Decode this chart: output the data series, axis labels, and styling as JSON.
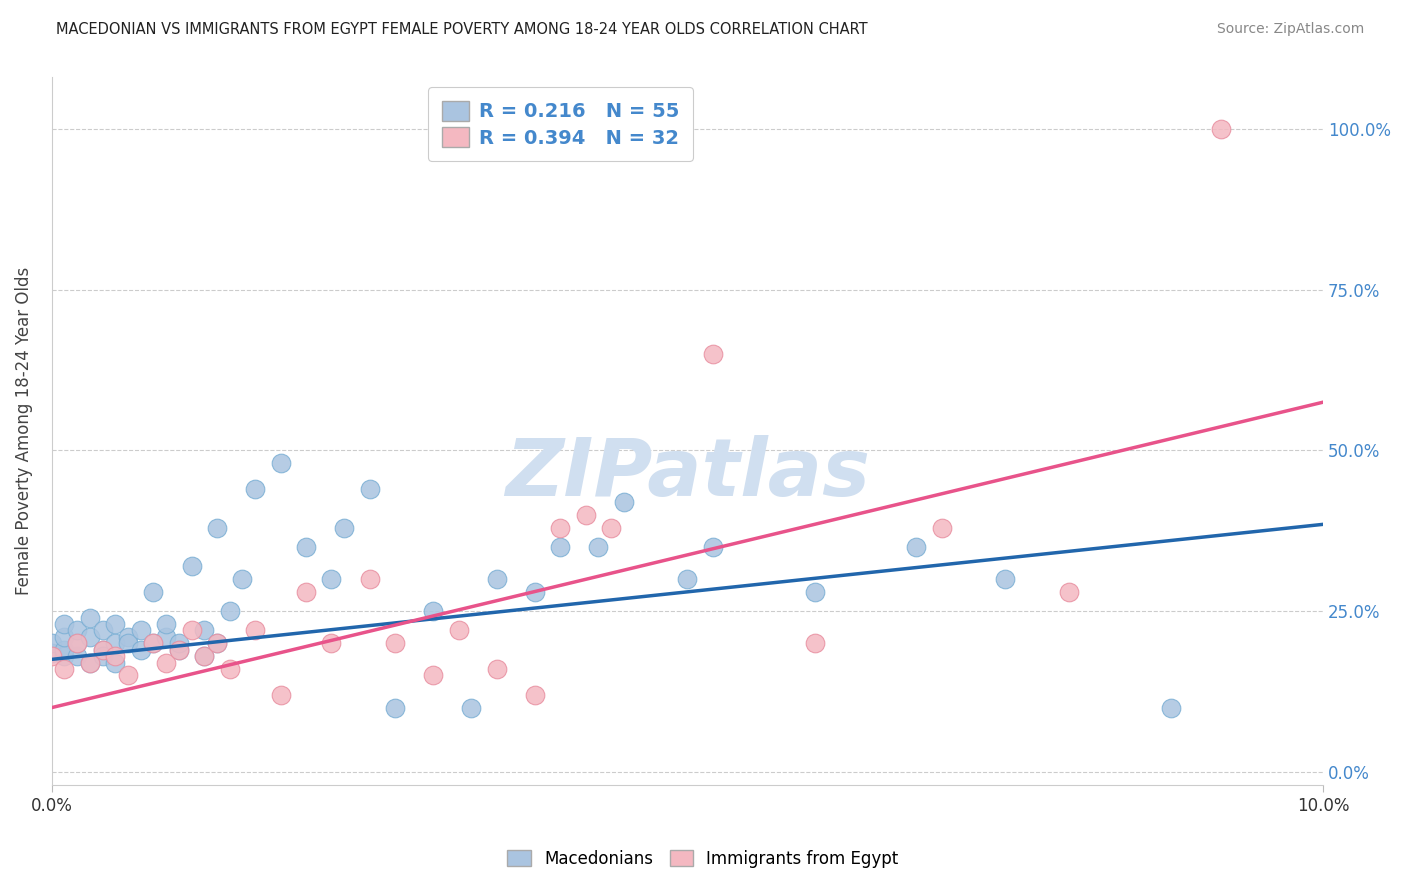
{
  "title": "MACEDONIAN VS IMMIGRANTS FROM EGYPT FEMALE POVERTY AMONG 18-24 YEAR OLDS CORRELATION CHART",
  "source": "Source: ZipAtlas.com",
  "ylabel": "Female Poverty Among 18-24 Year Olds",
  "xlim": [
    0.0,
    0.1
  ],
  "ylim": [
    -0.02,
    1.08
  ],
  "yticks": [
    0.0,
    0.25,
    0.5,
    0.75,
    1.0
  ],
  "ytick_labels": [
    "0.0%",
    "25.0%",
    "50.0%",
    "75.0%",
    "100.0%"
  ],
  "xtick_positions": [
    0.0,
    0.1
  ],
  "xtick_labels": [
    "0.0%",
    "10.0%"
  ],
  "mac_color": "#aac4e0",
  "egypt_color": "#f4b8c1",
  "mac_edge_color": "#7bafd4",
  "egypt_edge_color": "#e88fa0",
  "mac_line_color": "#2166ac",
  "egypt_line_color": "#e8538a",
  "R_mac": 0.216,
  "N_mac": 55,
  "R_egypt": 0.394,
  "N_egypt": 32,
  "watermark": "ZIPatlas",
  "watermark_color": "#d0dff0",
  "legend_label_mac": "Macedonians",
  "legend_label_egypt": "Immigrants from Egypt",
  "mac_line_y0": 0.175,
  "mac_line_y1": 0.385,
  "egypt_line_y0": 0.1,
  "egypt_line_y1": 0.575,
  "mac_scatter_x": [
    0.0,
    0.0,
    0.001,
    0.001,
    0.001,
    0.001,
    0.002,
    0.002,
    0.002,
    0.003,
    0.003,
    0.003,
    0.004,
    0.004,
    0.004,
    0.005,
    0.005,
    0.005,
    0.006,
    0.006,
    0.007,
    0.007,
    0.008,
    0.008,
    0.009,
    0.009,
    0.01,
    0.01,
    0.011,
    0.012,
    0.012,
    0.013,
    0.013,
    0.014,
    0.015,
    0.016,
    0.018,
    0.02,
    0.022,
    0.023,
    0.025,
    0.027,
    0.03,
    0.033,
    0.035,
    0.038,
    0.04,
    0.043,
    0.045,
    0.05,
    0.052,
    0.06,
    0.068,
    0.075,
    0.088
  ],
  "mac_scatter_y": [
    0.185,
    0.2,
    0.18,
    0.19,
    0.21,
    0.23,
    0.18,
    0.2,
    0.22,
    0.17,
    0.21,
    0.24,
    0.19,
    0.22,
    0.18,
    0.2,
    0.23,
    0.17,
    0.21,
    0.2,
    0.22,
    0.19,
    0.2,
    0.28,
    0.21,
    0.23,
    0.19,
    0.2,
    0.32,
    0.22,
    0.18,
    0.2,
    0.38,
    0.25,
    0.3,
    0.44,
    0.48,
    0.35,
    0.3,
    0.38,
    0.44,
    0.1,
    0.25,
    0.1,
    0.3,
    0.28,
    0.35,
    0.35,
    0.42,
    0.3,
    0.35,
    0.28,
    0.35,
    0.3,
    0.1
  ],
  "egypt_scatter_x": [
    0.0,
    0.001,
    0.002,
    0.003,
    0.004,
    0.005,
    0.006,
    0.008,
    0.009,
    0.01,
    0.011,
    0.012,
    0.013,
    0.014,
    0.016,
    0.018,
    0.02,
    0.022,
    0.025,
    0.027,
    0.03,
    0.032,
    0.035,
    0.038,
    0.04,
    0.042,
    0.044,
    0.052,
    0.06,
    0.07,
    0.08,
    0.092
  ],
  "egypt_scatter_y": [
    0.18,
    0.16,
    0.2,
    0.17,
    0.19,
    0.18,
    0.15,
    0.2,
    0.17,
    0.19,
    0.22,
    0.18,
    0.2,
    0.16,
    0.22,
    0.12,
    0.28,
    0.2,
    0.3,
    0.2,
    0.15,
    0.22,
    0.16,
    0.12,
    0.38,
    0.4,
    0.38,
    0.65,
    0.2,
    0.38,
    0.28,
    1.0
  ],
  "background_color": "#ffffff",
  "grid_color": "#cccccc"
}
